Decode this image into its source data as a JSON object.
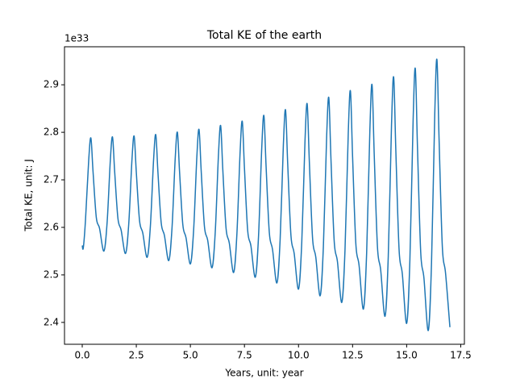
{
  "chart_data": {
    "type": "line",
    "title": "Total KE of the earth",
    "x_label": "Years, unit: year",
    "y_label": "Total KE, unit: J",
    "y_offset_label": "1e33",
    "xlim": [
      -0.82,
      17.67
    ],
    "ylim": [
      2.354,
      2.98
    ],
    "xticks": [
      {
        "value": 0,
        "label": "0.0"
      },
      {
        "value": 2.5,
        "label": "2.5"
      },
      {
        "value": 5,
        "label": "5.0"
      },
      {
        "value": 7.5,
        "label": "7.5"
      },
      {
        "value": 10,
        "label": "10.0"
      },
      {
        "value": 12.5,
        "label": "12.5"
      },
      {
        "value": 15,
        "label": "15.0"
      },
      {
        "value": 17.5,
        "label": "17.5"
      }
    ],
    "yticks": [
      2.4,
      2.5,
      2.6,
      2.7,
      2.8,
      2.9
    ],
    "grid": false,
    "x": [
      0,
      0.05,
      0.15,
      0.3,
      0.4,
      0.5,
      0.65,
      0.8,
      1.0,
      1.15,
      1.3,
      1.4,
      1.5,
      1.65,
      1.8,
      2.0,
      2.15,
      2.3,
      2.4,
      2.5,
      2.65,
      2.8,
      3.0,
      3.15,
      3.3,
      3.4,
      3.5,
      3.65,
      3.8,
      4.0,
      4.15,
      4.3,
      4.4,
      4.5,
      4.65,
      4.8,
      5.0,
      5.15,
      5.3,
      5.4,
      5.5,
      5.65,
      5.8,
      6.0,
      6.15,
      6.3,
      6.4,
      6.5,
      6.65,
      6.8,
      7.0,
      7.15,
      7.3,
      7.4,
      7.5,
      7.65,
      7.8,
      8.0,
      8.15,
      8.3,
      8.4,
      8.5,
      8.65,
      8.8,
      9.0,
      9.15,
      9.3,
      9.4,
      9.5,
      9.65,
      9.8,
      10.0,
      10.15,
      10.3,
      10.4,
      10.5,
      10.65,
      10.8,
      11.0,
      11.15,
      11.3,
      11.4,
      11.5,
      11.65,
      11.8,
      12.0,
      12.15,
      12.3,
      12.4,
      12.5,
      12.65,
      12.8,
      13.0,
      13.15,
      13.3,
      13.4,
      13.5,
      13.65,
      13.8,
      14.0,
      14.15,
      14.3,
      14.4,
      14.5,
      14.65,
      14.8,
      15.0,
      15.15,
      15.3,
      15.4,
      15.5,
      15.65,
      15.8,
      16.0,
      16.15,
      16.3,
      16.4,
      16.5,
      16.65,
      16.8,
      17.0
    ],
    "series": [
      {
        "color": "#1f77b4",
        "values": [
          2.562,
          2.557,
          2.615,
          2.742,
          2.788,
          2.717,
          2.621,
          2.598,
          2.55,
          2.61,
          2.742,
          2.79,
          2.717,
          2.619,
          2.594,
          2.545,
          2.607,
          2.743,
          2.792,
          2.716,
          2.614,
          2.588,
          2.537,
          2.602,
          2.743,
          2.795,
          2.716,
          2.61,
          2.583,
          2.53,
          2.598,
          2.746,
          2.8,
          2.717,
          2.606,
          2.578,
          2.523,
          2.594,
          2.749,
          2.806,
          2.719,
          2.602,
          2.573,
          2.515,
          2.59,
          2.754,
          2.814,
          2.721,
          2.598,
          2.567,
          2.505,
          2.585,
          2.759,
          2.823,
          2.725,
          2.593,
          2.561,
          2.495,
          2.58,
          2.767,
          2.835,
          2.729,
          2.589,
          2.553,
          2.483,
          2.574,
          2.774,
          2.847,
          2.734,
          2.583,
          2.545,
          2.47,
          2.568,
          2.782,
          2.86,
          2.739,
          2.577,
          2.537,
          2.456,
          2.56,
          2.79,
          2.873,
          2.744,
          2.571,
          2.528,
          2.442,
          2.553,
          2.798,
          2.887,
          2.749,
          2.566,
          2.52,
          2.428,
          2.546,
          2.806,
          2.9,
          2.754,
          2.559,
          2.51,
          2.413,
          2.539,
          2.815,
          2.916,
          2.761,
          2.553,
          2.502,
          2.398,
          2.532,
          2.827,
          2.934,
          2.769,
          2.548,
          2.493,
          2.383,
          2.526,
          2.839,
          2.953,
          2.784,
          2.559,
          2.503,
          2.39
        ]
      }
    ]
  }
}
